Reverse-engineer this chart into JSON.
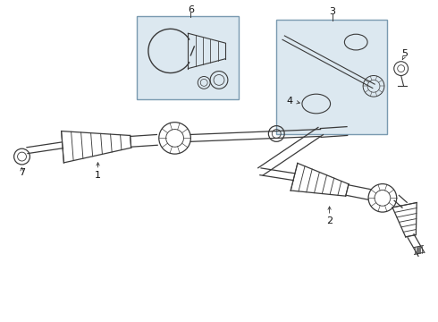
{
  "bg_color": "#ffffff",
  "line_color": "#3a3a3a",
  "box_bg": "#dce8f0",
  "box_edge": "#7a9ab0",
  "label_fontsize": 8,
  "figsize": [
    4.9,
    3.6
  ],
  "dpi": 100
}
